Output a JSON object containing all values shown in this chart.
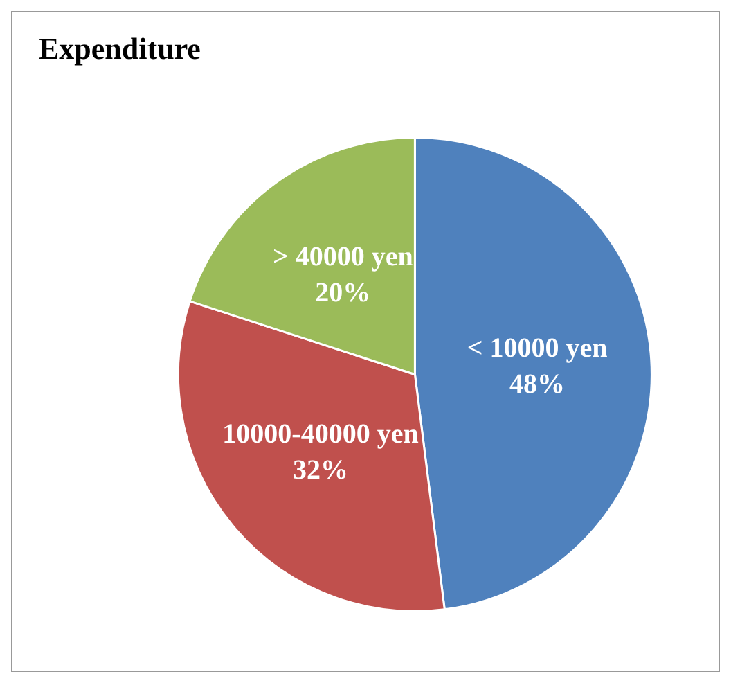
{
  "chart_data": {
    "type": "pie",
    "title": "Expenditure",
    "categories": [
      "< 10000 yen",
      "10000-40000 yen",
      "> 40000 yen"
    ],
    "values": [
      48,
      32,
      20
    ],
    "value_labels": [
      "48%",
      "32%",
      "20%"
    ],
    "colors": [
      "#4f81bd",
      "#c0504d",
      "#9bbb59"
    ],
    "legend": false
  }
}
